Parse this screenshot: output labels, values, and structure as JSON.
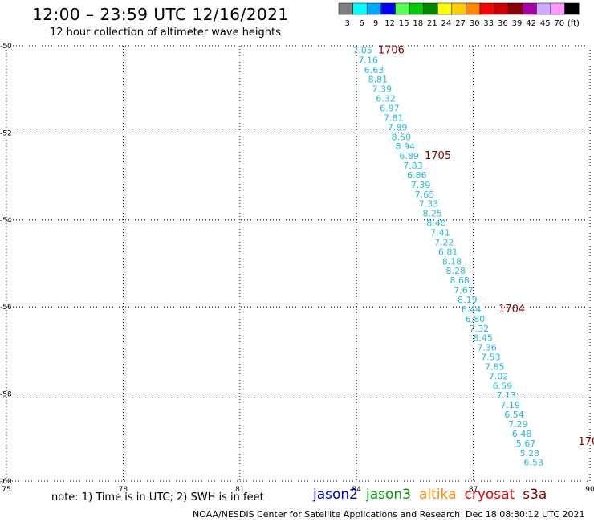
{
  "header": {
    "title": "12:00 – 23:59 UTC 12/16/2021",
    "subtitle": "12 hour collection of altimeter wave heights"
  },
  "colorbar": {
    "labels": [
      "3",
      "6",
      "9",
      "12",
      "15",
      "18",
      "21",
      "24",
      "27",
      "30",
      "33",
      "36",
      "39",
      "42",
      "45",
      "70",
      "(ft)"
    ],
    "colors": [
      "#7f7f7f",
      "#00ffff",
      "#00aaff",
      "#0000ff",
      "#55ff55",
      "#00cc00",
      "#008800",
      "#ffff00",
      "#ffcc00",
      "#ff8800",
      "#ff0000",
      "#cc0000",
      "#880000",
      "#aa00aa",
      "#ccaaff",
      "#ff99ff",
      "#000000"
    ]
  },
  "footer": {
    "note": "note: 1) Time is in UTC; 2) SWH is in feet",
    "credit": "NOAA/NESDIS Center for Satellite Applications and Research",
    "timestamp": "Dec 18 08:30:12 UTC 2021"
  },
  "satellites": [
    {
      "name": "jason2",
      "color": "#0000cc"
    },
    {
      "name": "jason3",
      "color": "#009900"
    },
    {
      "name": "altika",
      "color": "#ff8800"
    },
    {
      "name": "cryosat",
      "color": "#dd0000"
    },
    {
      "name": "s3a",
      "color": "#880000"
    }
  ],
  "chart_data": {
    "type": "scatter",
    "title": "12:00 – 23:59 UTC 12/16/2021",
    "xlim": [
      75,
      90
    ],
    "ylim": [
      -60,
      -50
    ],
    "xticks": [
      75,
      78,
      81,
      84,
      87,
      90
    ],
    "yticks": [
      -50,
      -52,
      -54,
      -56,
      -58,
      -60
    ],
    "xtick_labels": [
      "75",
      "78",
      "81",
      "84",
      "87",
      "90"
    ],
    "ytick_labels": [
      "-50",
      "-52",
      "-54",
      "-56",
      "-58",
      "-60"
    ],
    "grid": true,
    "point_color": "#22bbdd",
    "time_label_color": "#880000",
    "points": [
      {
        "x": 84.15,
        "y": -50.1,
        "v": "7.05"
      },
      {
        "x": 84.3,
        "y": -50.32,
        "v": "7.16"
      },
      {
        "x": 84.45,
        "y": -50.55,
        "v": "6.63"
      },
      {
        "x": 84.55,
        "y": -50.77,
        "v": "8.81"
      },
      {
        "x": 84.65,
        "y": -50.99,
        "v": "7.39"
      },
      {
        "x": 84.75,
        "y": -51.21,
        "v": "6.32"
      },
      {
        "x": 84.85,
        "y": -51.43,
        "v": "6.97"
      },
      {
        "x": 84.95,
        "y": -51.65,
        "v": "7.81"
      },
      {
        "x": 85.05,
        "y": -51.87,
        "v": "7.89"
      },
      {
        "x": 85.15,
        "y": -52.09,
        "v": "8.50"
      },
      {
        "x": 85.25,
        "y": -52.31,
        "v": "8.94"
      },
      {
        "x": 85.35,
        "y": -52.53,
        "v": "6.89"
      },
      {
        "x": 85.45,
        "y": -52.75,
        "v": "7.83"
      },
      {
        "x": 85.55,
        "y": -52.97,
        "v": "6.86"
      },
      {
        "x": 85.65,
        "y": -53.19,
        "v": "7.39"
      },
      {
        "x": 85.75,
        "y": -53.41,
        "v": "7.65"
      },
      {
        "x": 85.85,
        "y": -53.63,
        "v": "7.33"
      },
      {
        "x": 85.95,
        "y": -53.85,
        "v": "8.25"
      },
      {
        "x": 86.05,
        "y": -54.07,
        "v": "8.40"
      },
      {
        "x": 86.15,
        "y": -54.29,
        "v": "7.41"
      },
      {
        "x": 86.25,
        "y": -54.51,
        "v": "7.22"
      },
      {
        "x": 86.35,
        "y": -54.73,
        "v": "6.81"
      },
      {
        "x": 86.45,
        "y": -54.95,
        "v": "8.18"
      },
      {
        "x": 86.55,
        "y": -55.17,
        "v": "8.28"
      },
      {
        "x": 86.65,
        "y": -55.39,
        "v": "8.68"
      },
      {
        "x": 86.75,
        "y": -55.61,
        "v": "7.67"
      },
      {
        "x": 86.85,
        "y": -55.83,
        "v": "8.19"
      },
      {
        "x": 86.95,
        "y": -56.05,
        "v": "6.44"
      },
      {
        "x": 87.05,
        "y": -56.27,
        "v": "6.80"
      },
      {
        "x": 87.15,
        "y": -56.49,
        "v": "7.32"
      },
      {
        "x": 87.25,
        "y": -56.71,
        "v": "8.45"
      },
      {
        "x": 87.35,
        "y": -56.93,
        "v": "7.36"
      },
      {
        "x": 87.45,
        "y": -57.15,
        "v": "7.53"
      },
      {
        "x": 87.55,
        "y": -57.37,
        "v": "7.85"
      },
      {
        "x": 87.65,
        "y": -57.59,
        "v": "7.02"
      },
      {
        "x": 87.75,
        "y": -57.81,
        "v": "6.59"
      },
      {
        "x": 87.85,
        "y": -58.03,
        "v": "7.13"
      },
      {
        "x": 87.95,
        "y": -58.25,
        "v": "7.19"
      },
      {
        "x": 88.05,
        "y": -58.47,
        "v": "6.54"
      },
      {
        "x": 88.15,
        "y": -58.69,
        "v": "7.29"
      },
      {
        "x": 88.25,
        "y": -58.91,
        "v": "6.48"
      },
      {
        "x": 88.35,
        "y": -59.13,
        "v": "5.67"
      },
      {
        "x": 88.45,
        "y": -59.35,
        "v": "5.23"
      },
      {
        "x": 88.55,
        "y": -59.57,
        "v": "6.53"
      }
    ],
    "time_labels": [
      {
        "x": 84.55,
        "y": -50.1,
        "v": "1706"
      },
      {
        "x": 85.75,
        "y": -52.53,
        "v": "1705"
      },
      {
        "x": 87.65,
        "y": -56.05,
        "v": "1704"
      },
      {
        "x": 89.7,
        "y": -59.1,
        "v": "170"
      }
    ]
  }
}
